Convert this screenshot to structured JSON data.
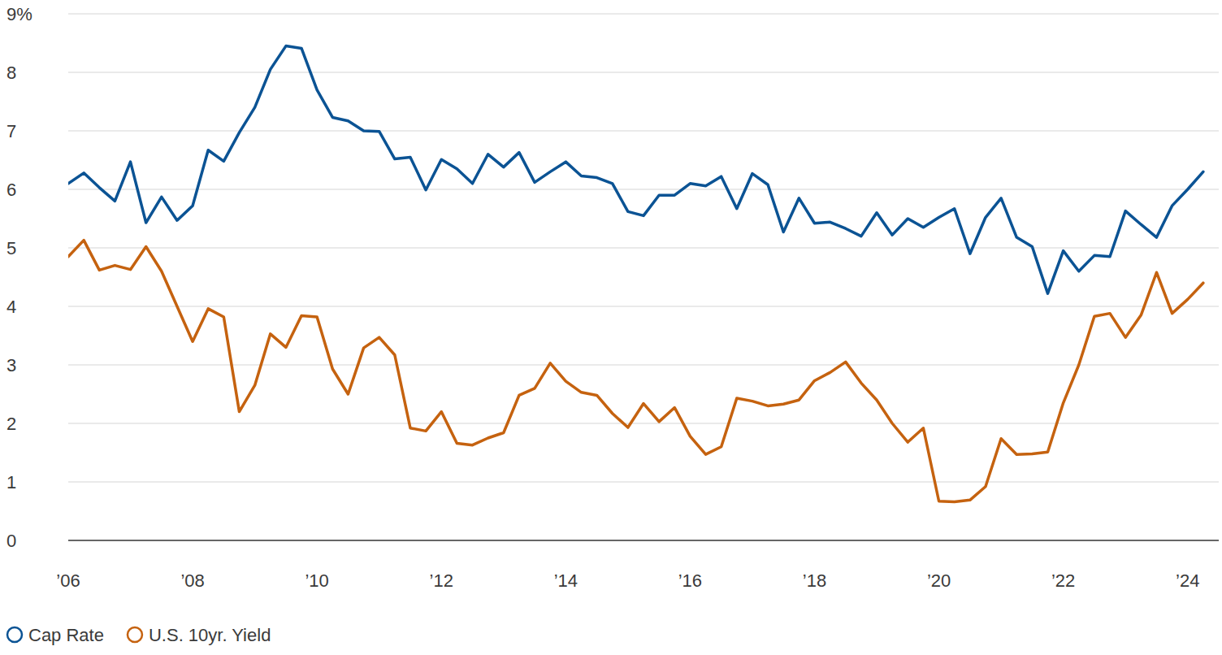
{
  "chart_data": {
    "type": "line",
    "x": [
      2006,
      2006.25,
      2006.5,
      2006.75,
      2007,
      2007.25,
      2007.5,
      2007.75,
      2008,
      2008.25,
      2008.5,
      2008.75,
      2009,
      2009.25,
      2009.5,
      2009.75,
      2010,
      2010.25,
      2010.5,
      2010.75,
      2011,
      2011.25,
      2011.5,
      2011.75,
      2012,
      2012.25,
      2012.5,
      2012.75,
      2013,
      2013.25,
      2013.5,
      2013.75,
      2014,
      2014.25,
      2014.5,
      2014.75,
      2015,
      2015.25,
      2015.5,
      2015.75,
      2016,
      2016.25,
      2016.5,
      2016.75,
      2017,
      2017.25,
      2017.5,
      2017.75,
      2018,
      2018.25,
      2018.5,
      2018.75,
      2019,
      2019.25,
      2019.5,
      2019.75,
      2020,
      2020.25,
      2020.5,
      2020.75,
      2021,
      2021.25,
      2021.5,
      2021.75,
      2022,
      2022.25,
      2022.5,
      2022.75,
      2023,
      2023.25,
      2023.5,
      2023.75,
      2024,
      2024.25
    ],
    "series": [
      {
        "name": "Cap Rate",
        "color": "#0b5394",
        "values": [
          6.1,
          6.28,
          6.03,
          5.8,
          6.47,
          5.43,
          5.87,
          5.47,
          5.72,
          6.67,
          6.48,
          6.97,
          7.4,
          8.05,
          8.45,
          8.41,
          7.7,
          7.23,
          7.17,
          7.0,
          6.99,
          6.52,
          6.55,
          5.99,
          6.51,
          6.35,
          6.1,
          6.6,
          6.38,
          6.63,
          6.12,
          6.3,
          6.47,
          6.23,
          6.2,
          6.1,
          5.62,
          5.55,
          5.9,
          5.9,
          6.1,
          6.06,
          6.22,
          5.67,
          6.27,
          6.08,
          5.27,
          5.85,
          5.42,
          5.44,
          5.33,
          5.2,
          5.6,
          5.22,
          5.5,
          5.35,
          5.52,
          5.67,
          4.9,
          5.52,
          5.85,
          5.18,
          5.02,
          4.22,
          4.95,
          4.6,
          4.87,
          4.85,
          5.63,
          5.4,
          5.18,
          5.72,
          6.0,
          6.3
        ]
      },
      {
        "name": "U.S. 10yr. Yield",
        "color": "#c5620f",
        "values": [
          4.85,
          5.13,
          4.62,
          4.7,
          4.63,
          5.02,
          4.6,
          4.0,
          3.4,
          3.96,
          3.82,
          2.2,
          2.65,
          3.53,
          3.3,
          3.84,
          3.82,
          2.93,
          2.5,
          3.29,
          3.47,
          3.17,
          1.92,
          1.87,
          2.2,
          1.66,
          1.63,
          1.75,
          1.84,
          2.48,
          2.6,
          3.03,
          2.72,
          2.53,
          2.48,
          2.17,
          1.93,
          2.34,
          2.03,
          2.27,
          1.78,
          1.47,
          1.6,
          2.43,
          2.38,
          2.3,
          2.33,
          2.4,
          2.73,
          2.87,
          3.05,
          2.69,
          2.4,
          2.0,
          1.68,
          1.92,
          0.67,
          0.66,
          0.69,
          0.92,
          1.74,
          1.47,
          1.48,
          1.51,
          2.35,
          3.0,
          3.83,
          3.88,
          3.47,
          3.85,
          4.58,
          3.88,
          4.12,
          4.4
        ]
      }
    ],
    "xlim": [
      2006,
      2024.5
    ],
    "xticks": [
      {
        "value": 2006,
        "label": "’06"
      },
      {
        "value": 2008,
        "label": "’08"
      },
      {
        "value": 2010,
        "label": "’10"
      },
      {
        "value": 2012,
        "label": "’12"
      },
      {
        "value": 2014,
        "label": "’14"
      },
      {
        "value": 2016,
        "label": "’16"
      },
      {
        "value": 2018,
        "label": "’18"
      },
      {
        "value": 2020,
        "label": "’20"
      },
      {
        "value": 2022,
        "label": "’22"
      },
      {
        "value": 2024,
        "label": "’24"
      }
    ],
    "ylim": [
      0,
      9
    ],
    "yticks": [
      0,
      1,
      2,
      3,
      4,
      5,
      6,
      7,
      8,
      {
        "value": 9,
        "label": "9%"
      }
    ],
    "grid": true,
    "legend": "bottom"
  }
}
